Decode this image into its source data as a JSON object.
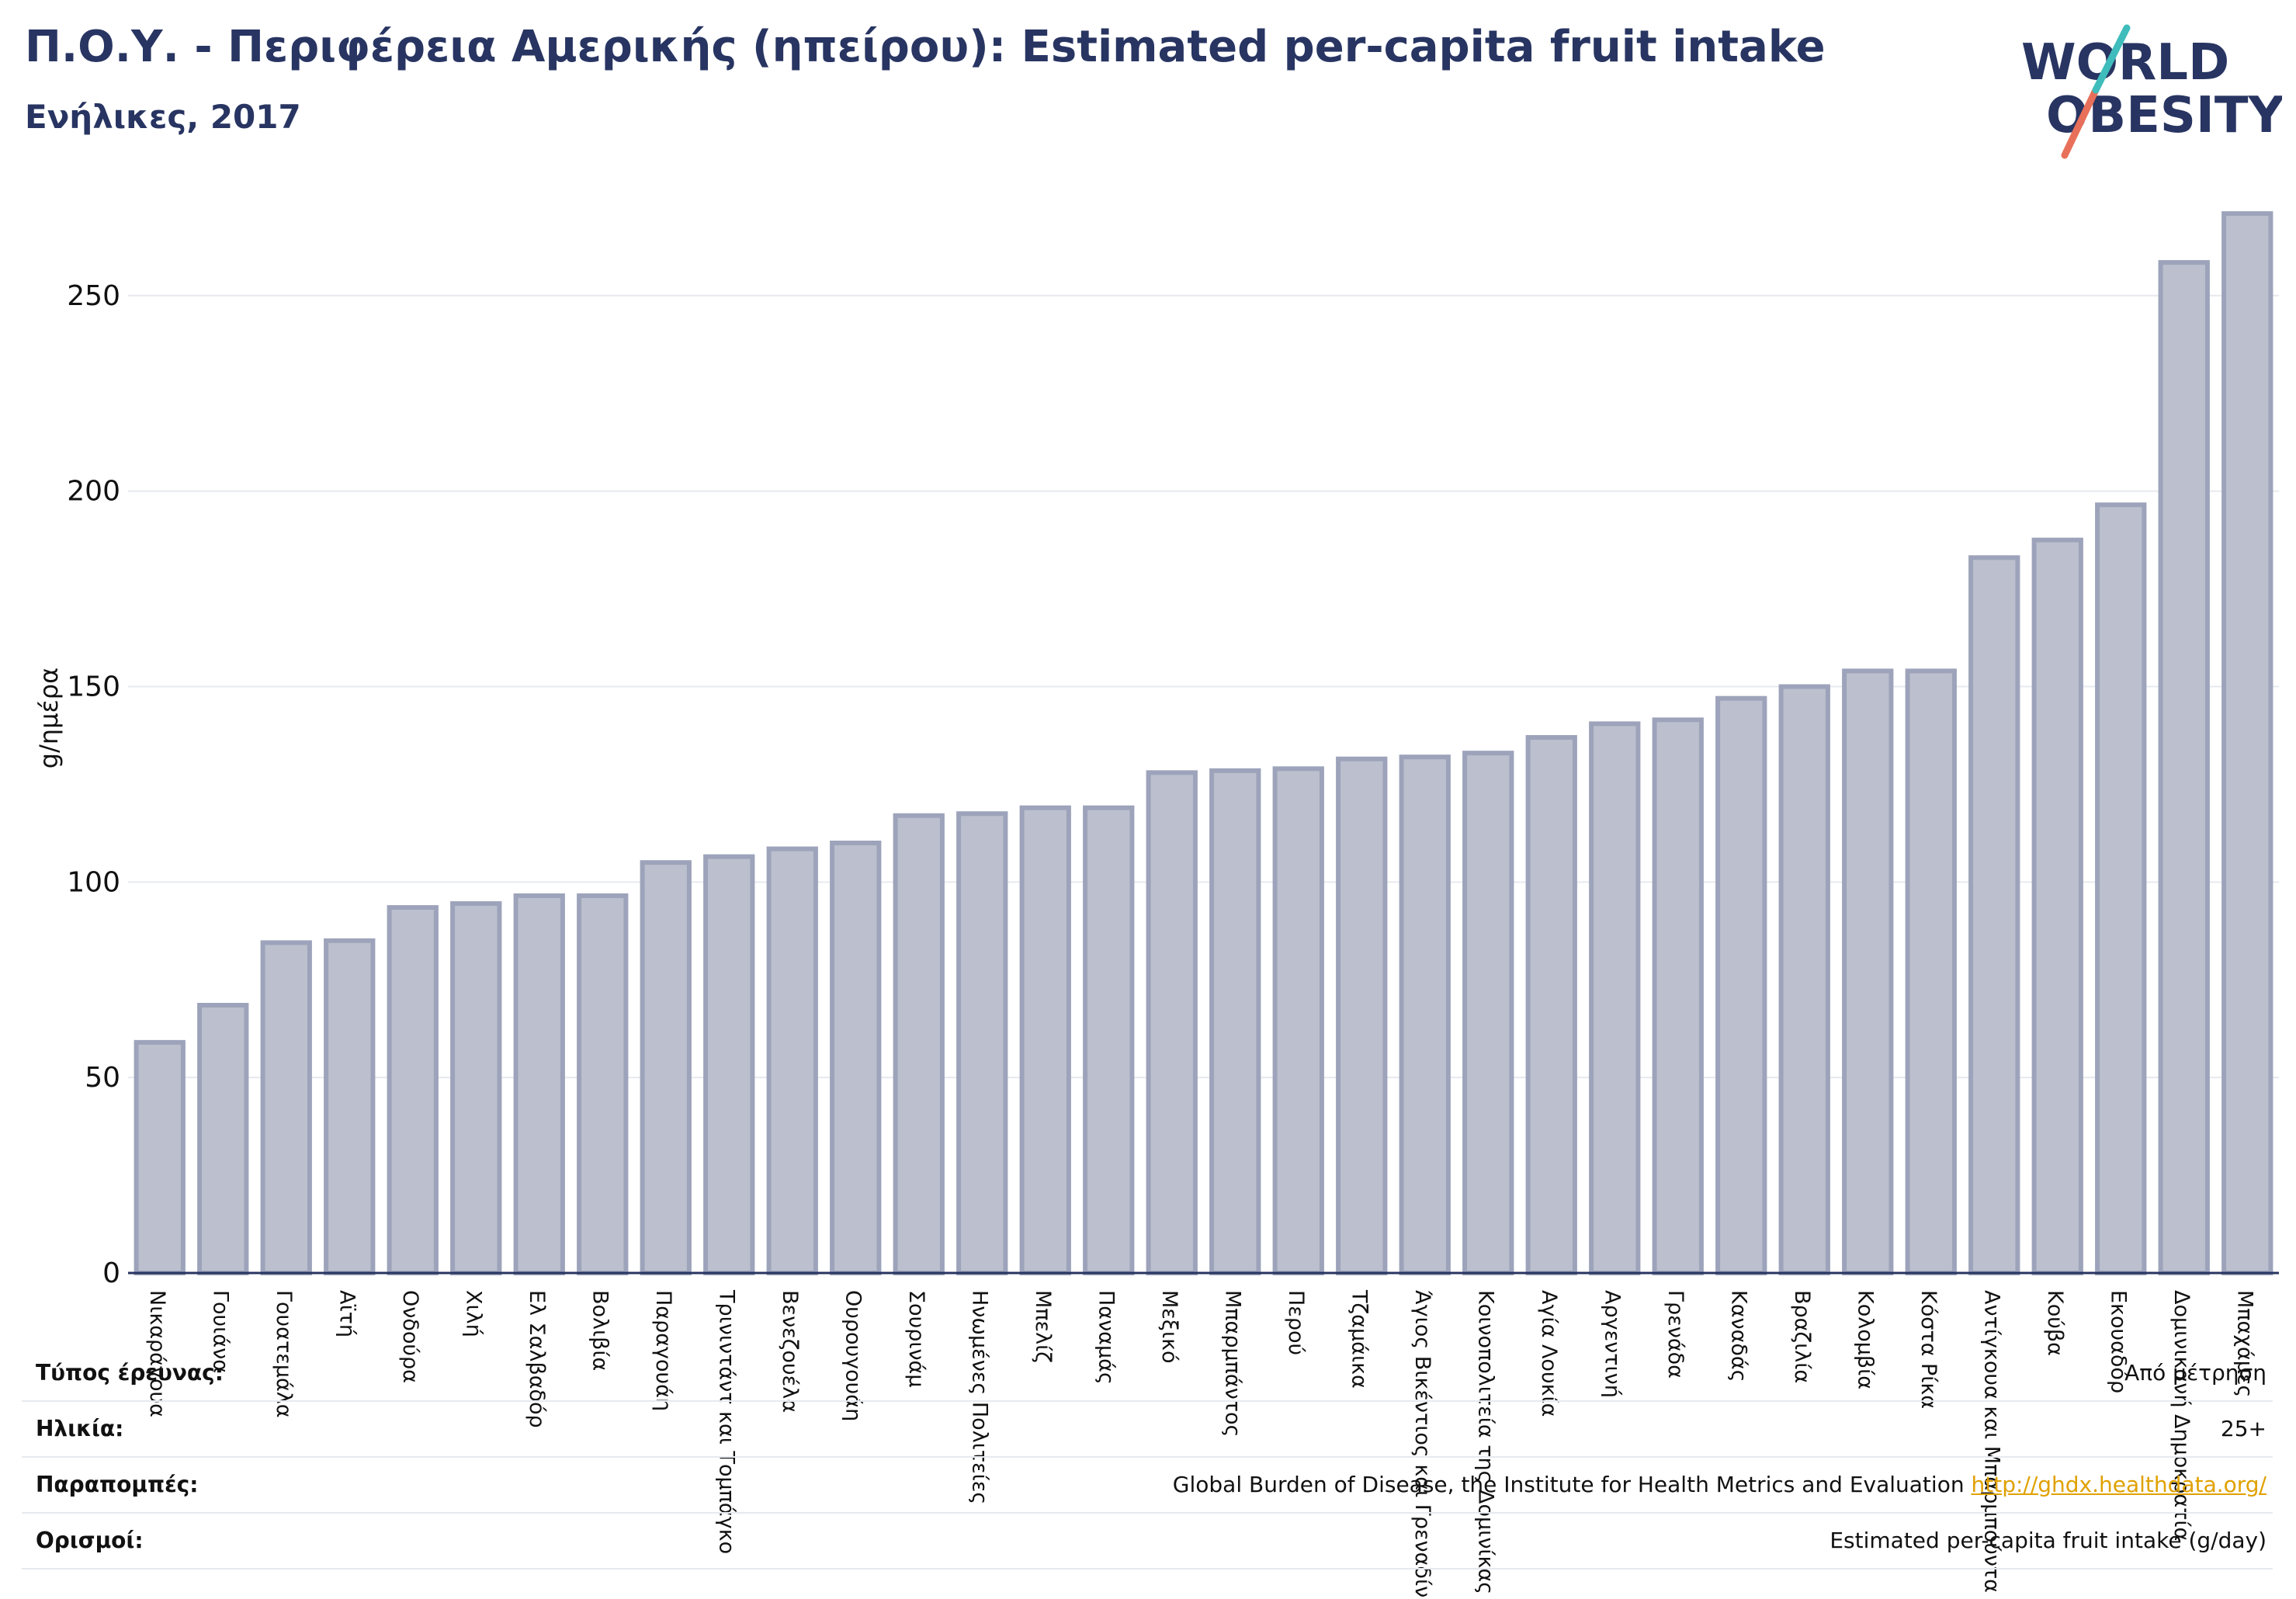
{
  "header": {
    "title": "Π.Ο.Υ. - Περιφέρεια Αμερικής (ηπείρου): Estimated per-capita fruit intake",
    "subtitle": "Ενήλικες, 2017"
  },
  "logo": {
    "line1": "WORLD",
    "line2": "OBESITY"
  },
  "colors": {
    "bar_fill": "#bcc0ce",
    "bar_stroke": "#9da3ba",
    "title": "#283562",
    "grid": "#e6eaef",
    "link": "#e0a100",
    "logo_teal": "#3fbcbc",
    "logo_coral": "#e8705a"
  },
  "chart_data": {
    "type": "bar",
    "ylabel": "g/ημέρα",
    "ylim": [
      0,
      275
    ],
    "yticks": [
      0,
      50,
      100,
      150,
      200,
      250
    ],
    "grid": true,
    "categories": [
      "Νικαράγουα",
      "Γουιάνα",
      "Γουατεμάλα",
      "Αϊτή",
      "Ονδούρα",
      "Χιλή",
      "Ελ Σαλβαδόρ",
      "Βολιβία",
      "Παραγουάη",
      "Τρινιντάντ και Τομπάγκο",
      "Βενεζουέλα",
      "Ουρουγουάη",
      "Σουρινάμ",
      "Ηνωμένες Πολιτείες",
      "Μπελίζ",
      "Παναμάς",
      "Μεξικό",
      "Μπαρμπάντος",
      "Περού",
      "Τζαμάικα",
      "Άγιος Βικέντιος και Γρεναδίνες",
      "Κοινοπολιτεία της Δομινίκας",
      "Αγία Λουκία",
      "Αργεντινή",
      "Γρενάδα",
      "Καναδάς",
      "Βραζιλία",
      "Κολομβία",
      "Κόστα Ρίκα",
      "Αντίγκουα και Μπαρμπούντα",
      "Κούβα",
      "Εκουαδόρ",
      "Δομινικανή Δημοκρατία",
      "Μπαχάμες"
    ],
    "values": [
      59,
      68.5,
      84.5,
      85,
      93.5,
      94.5,
      96.5,
      96.5,
      105,
      106.5,
      108.5,
      110,
      117,
      117.5,
      119,
      119,
      128,
      128.5,
      129,
      131.5,
      132,
      133,
      137,
      140.5,
      141.5,
      147,
      150,
      154,
      154,
      183,
      187.5,
      196.5,
      258.5,
      271
    ]
  },
  "meta": [
    {
      "label": "Τύπος έρευνας:",
      "value": "Από μέτρηση"
    },
    {
      "label": "Ηλικία:",
      "value": "25+"
    },
    {
      "label": "Παραπομπές:",
      "value": "Global Burden of Disease, the Institute for Health Metrics and Evaluation",
      "link": "http://ghdx.healthdata.org/"
    },
    {
      "label": "Ορισμοί:",
      "value": "Estimated per-capita fruit intake (g/day)"
    }
  ]
}
